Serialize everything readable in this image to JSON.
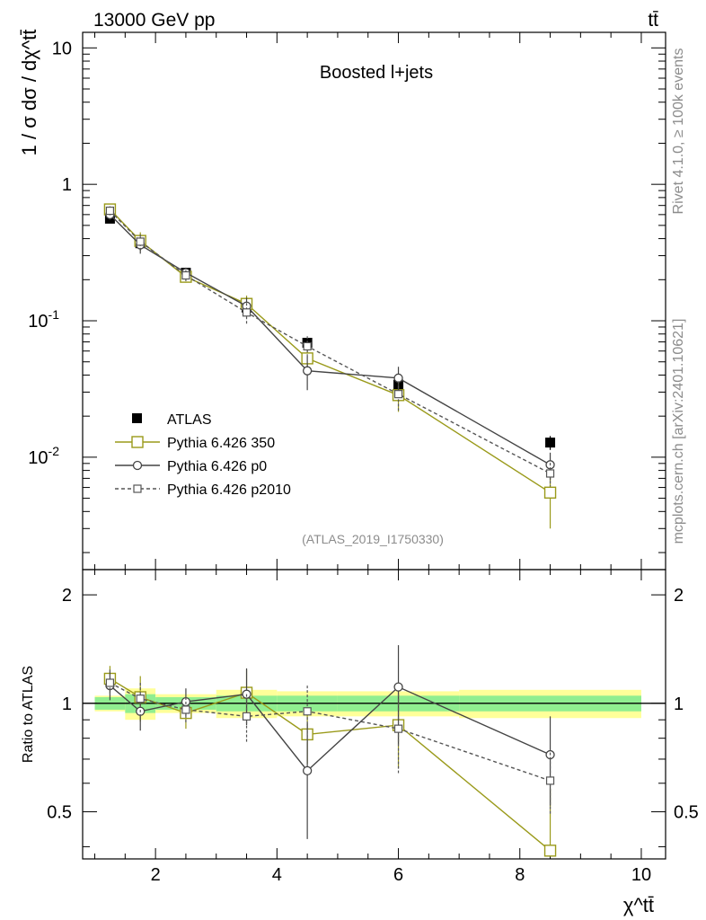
{
  "header": {
    "energy_label": "13000 GeV pp",
    "process_label": "tt̄"
  },
  "side_labels": {
    "rivet": "Rivet 4.1.0, ≥ 100k events",
    "mcplots": "mcplots.cern.ch [arXiv:2401.10621]"
  },
  "chart_data": [
    {
      "type": "line",
      "title": "Boosted l+jets",
      "analysis_label": "(ATLAS_2019_I1750330)",
      "ylabel": "1 / σ dσ / dχ^tt̄",
      "yscale": "log",
      "ylim": [
        0.0015,
        13
      ],
      "xlim": [
        0.8,
        10.4
      ],
      "x_tick_labels": [
        "2",
        "4",
        "6",
        "8",
        "10"
      ],
      "y_tick_labels": [
        "10",
        "1",
        "10^-1",
        "10^-2"
      ],
      "x": [
        1.25,
        1.75,
        2.5,
        3.5,
        4.5,
        6,
        8.5
      ],
      "bin_edges": [
        1,
        1.5,
        2,
        3,
        4,
        5,
        7,
        10
      ],
      "series": [
        {
          "name": "ATLAS",
          "marker": "filled-square",
          "color": "#000000",
          "values": [
            0.56,
            0.37,
            0.225,
            0.125,
            0.069,
            0.034,
            0.0128
          ],
          "errors": [
            0.04,
            0.04,
            0.02,
            0.012,
            0.006,
            0.004,
            0.0015
          ]
        },
        {
          "name": "Pythia 6.426 350",
          "marker": "open-square",
          "color": "#9a9a1a",
          "values": [
            0.655,
            0.385,
            0.21,
            0.133,
            0.053,
            0.0285,
            0.0055
          ],
          "errors": [
            0.05,
            0.06,
            0.02,
            0.02,
            0.01,
            0.007,
            0.0025
          ]
        },
        {
          "name": "Pythia 6.426 p0",
          "marker": "open-circle",
          "color": "#444444",
          "values": [
            0.6,
            0.36,
            0.225,
            0.128,
            0.043,
            0.038,
            0.0088
          ],
          "errors": [
            0.05,
            0.05,
            0.02,
            0.02,
            0.012,
            0.008,
            0.002
          ]
        },
        {
          "name": "Pythia 6.426 p2010",
          "marker": "open-square-dashed",
          "color": "#555555",
          "values": [
            0.64,
            0.38,
            0.215,
            0.115,
            0.065,
            0.029,
            0.0076
          ],
          "errors": [
            0.05,
            0.05,
            0.02,
            0.02,
            0.012,
            0.007,
            0.0015
          ]
        }
      ]
    },
    {
      "type": "line",
      "ylabel": "Ratio to ATLAS",
      "xlabel": "χ^tt̄",
      "ylim": [
        0.37,
        2.35
      ],
      "xlim": [
        0.8,
        10.4
      ],
      "y_tick_labels": [
        "2",
        "1",
        "0.5"
      ],
      "x": [
        1.25,
        1.75,
        2.5,
        3.5,
        4.5,
        6,
        8.5
      ],
      "bands": {
        "inner_color": "#90ee90",
        "outer_color": "#ffff99",
        "inner_half_width": [
          0.04,
          0.06,
          0.04,
          0.05,
          0.05,
          0.05,
          0.05
        ],
        "outer_half_width": [
          0.05,
          0.1,
          0.06,
          0.09,
          0.08,
          0.08,
          0.09
        ]
      },
      "series": [
        {
          "name": "Pythia 6.426 350",
          "values": [
            1.17,
            1.04,
            0.94,
            1.07,
            0.82,
            0.87,
            0.39
          ],
          "err_low": [
            0.1,
            0.15,
            0.09,
            0.17,
            0.14,
            0.21,
            0.19
          ],
          "err_up": [
            0.1,
            0.15,
            0.09,
            0.17,
            0.14,
            0.21,
            0.19
          ]
        },
        {
          "name": "Pythia 6.426 p0",
          "values": [
            1.12,
            0.95,
            1.01,
            1.06,
            0.65,
            1.11,
            0.72
          ],
          "err_low": [
            0.1,
            0.11,
            0.09,
            0.19,
            0.23,
            0.34,
            0.2
          ],
          "err_up": [
            0.1,
            0.11,
            0.09,
            0.19,
            0.23,
            0.34,
            0.2
          ]
        },
        {
          "name": "Pythia 6.426 p2010",
          "values": [
            1.14,
            1.03,
            0.96,
            0.92,
            0.95,
            0.85,
            0.61
          ],
          "err_low": [
            0.1,
            0.11,
            0.08,
            0.14,
            0.17,
            0.21,
            0.12
          ],
          "err_up": [
            0.1,
            0.11,
            0.08,
            0.14,
            0.17,
            0.21,
            0.12
          ]
        }
      ]
    }
  ]
}
